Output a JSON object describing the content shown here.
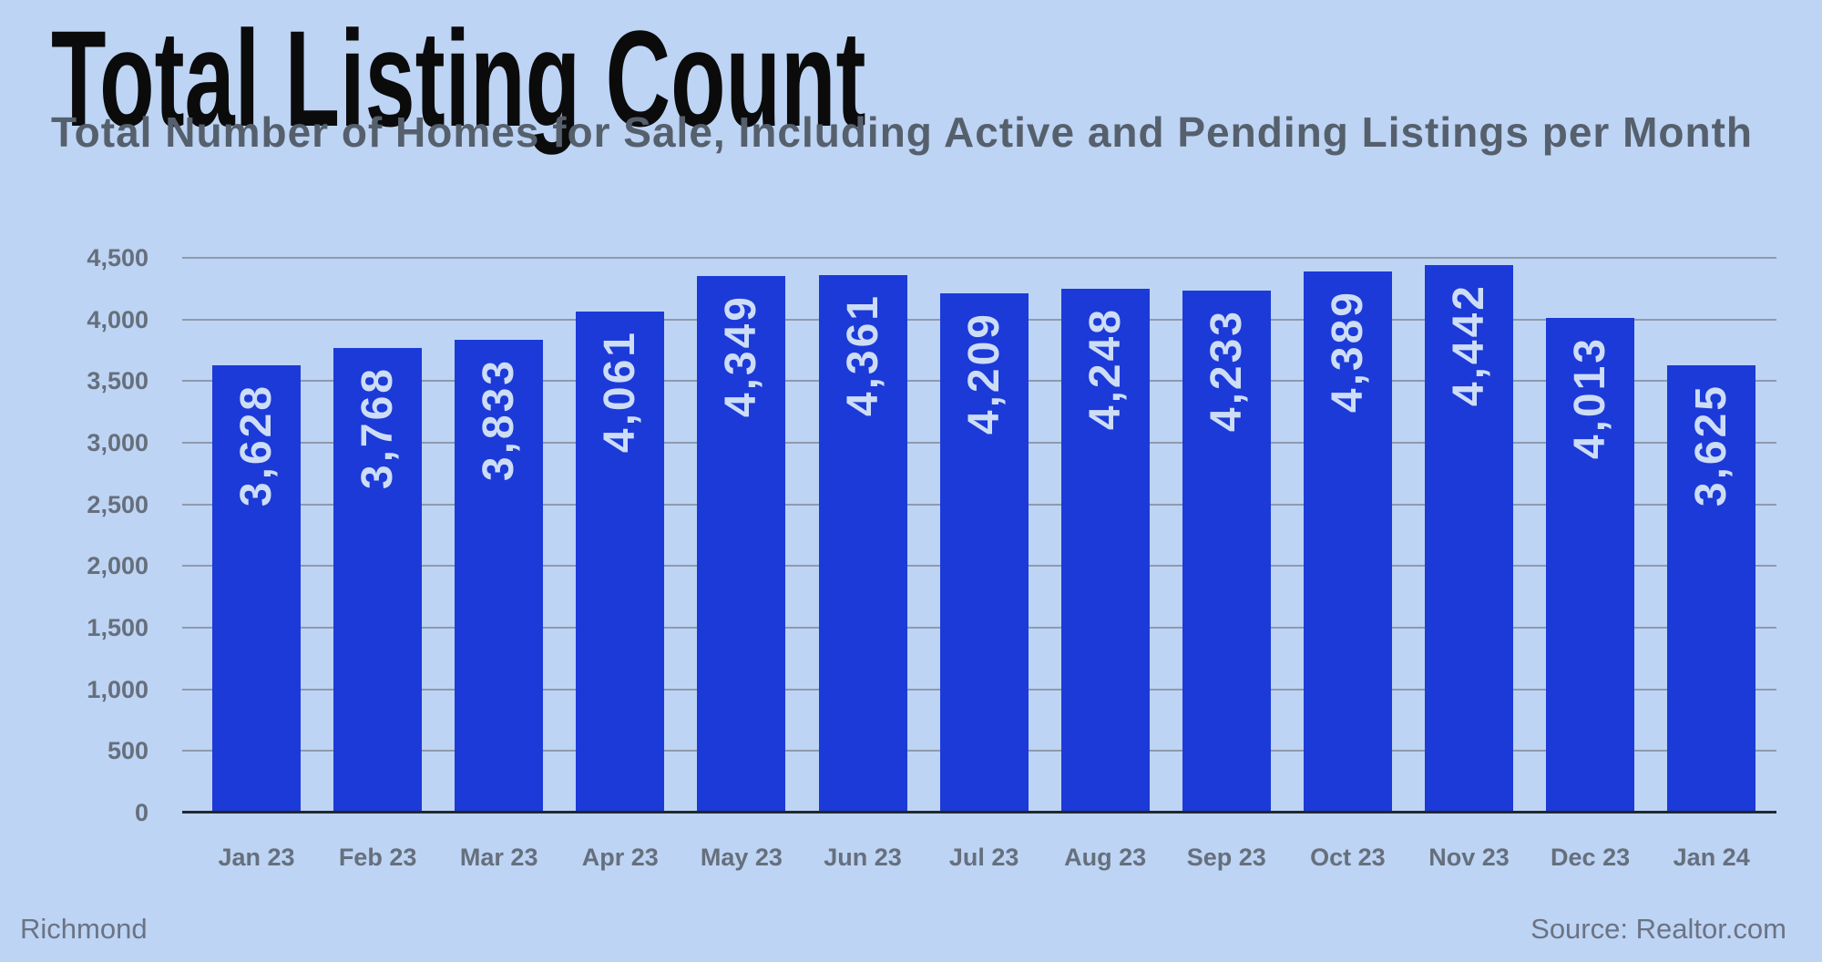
{
  "title": "Total Listing Count",
  "subtitle": "Total Number of Homes for Sale, Including Active and Pending Listings per Month",
  "footer": {
    "left": "Richmond",
    "right": "Source: Realtor.com"
  },
  "chart_data": {
    "type": "bar",
    "title": "Total Listing Count",
    "subtitle": "Total Number of Homes for Sale, Including Active and Pending Listings per Month",
    "categories": [
      "Jan 23",
      "Feb 23",
      "Mar 23",
      "Apr 23",
      "May 23",
      "Jun 23",
      "Jul 23",
      "Aug 23",
      "Sep 23",
      "Oct 23",
      "Nov 23",
      "Dec 23",
      "Jan 24"
    ],
    "values": [
      3628,
      3768,
      3833,
      4061,
      4349,
      4361,
      4209,
      4248,
      4233,
      4389,
      4442,
      4013,
      3625
    ],
    "value_labels": [
      "3,628",
      "3,768",
      "3,833",
      "4,061",
      "4,349",
      "4,361",
      "4,209",
      "4,248",
      "4,233",
      "4,389",
      "4,442",
      "4,013",
      "3,625"
    ],
    "value_label_position": "inside-top-rotated-90",
    "xlabel": "",
    "ylabel": "",
    "ylim": [
      0,
      4500
    ],
    "ytick_interval": 500,
    "ytick_labels": [
      "0",
      "500",
      "1,000",
      "1,500",
      "2,000",
      "2,500",
      "3,000",
      "3,500",
      "4,000",
      "4,500"
    ],
    "grid": true,
    "legend": false,
    "colors": {
      "background": "#bdd4f4",
      "bar": "#1c3ad8",
      "bar_label": "#cdddf6",
      "gridline": "#8f9aab",
      "axis_line": "#23272e",
      "tick_label": "#666f7c",
      "title": "#0b0b0c",
      "subtitle": "#56606d",
      "footer": "#6b7384"
    }
  }
}
